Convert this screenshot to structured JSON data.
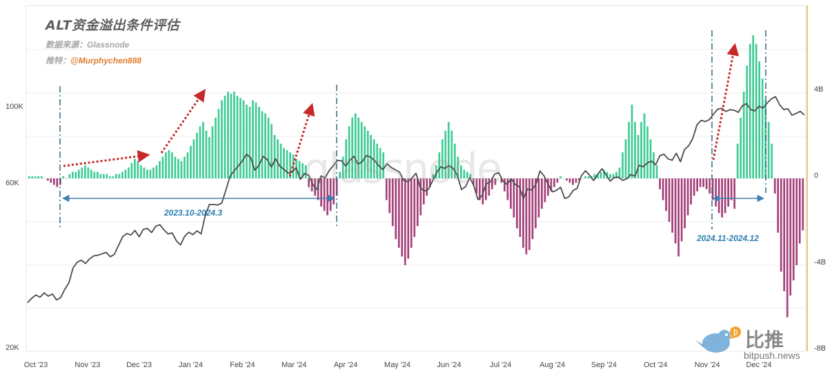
{
  "header": {
    "title": "ALT资金溢出条件评估",
    "source_label": "数据来源：",
    "source_value": "Glassnode",
    "author_label": "推特：",
    "author_handle": "@Murphychen888"
  },
  "watermark": "glassnode",
  "brand": {
    "name_cn": "比推",
    "url": "bitpush.news"
  },
  "colors": {
    "positive_bar": "#3ecb94",
    "negative_bar": "#a43f79",
    "price_line": "#4a4a4a",
    "arrow": "#c82828",
    "annotation": "#2a7eb0",
    "right_axis": "#e3b04b"
  },
  "annotations": [
    {
      "label": "2023.10-2024.3"
    },
    {
      "label": "2024.11-2024.12"
    }
  ],
  "chart_data": {
    "type": "bar+line",
    "title": "ALT资金溢出条件评估",
    "x_ticks": [
      "Oct '23",
      "Nov '23",
      "Dec '23",
      "Jan '24",
      "Feb '24",
      "Mar '24",
      "Apr '24",
      "May '24",
      "Jun '24",
      "Jul '24",
      "Aug '24",
      "Sep '24",
      "Oct '24",
      "Nov '24",
      "Dec '24"
    ],
    "left_axis": {
      "ticks": [
        "20K",
        "60K",
        "100K"
      ],
      "scale": "log",
      "range": [
        20000,
        140000
      ]
    },
    "right_axis": {
      "ticks": [
        "4B",
        "0",
        "-4B",
        "-8B"
      ],
      "range": [
        -8,
        8
      ],
      "unit": "B"
    },
    "series": [
      {
        "name": "",
        "kind": "bar",
        "axis": "right",
        "values": [
          0.1,
          0.1,
          0.1,
          0.1,
          0.1,
          0.0,
          -0.1,
          -0.2,
          -0.3,
          -0.4,
          -0.3,
          0.1,
          0.0,
          0.2,
          0.3,
          0.3,
          0.4,
          0.5,
          0.6,
          0.5,
          0.4,
          0.3,
          0.3,
          0.2,
          0.2,
          0.2,
          0.1,
          0.1,
          0.2,
          0.2,
          0.3,
          0.4,
          0.5,
          0.7,
          0.9,
          0.8,
          0.6,
          0.5,
          0.4,
          0.4,
          0.5,
          0.6,
          0.8,
          1.0,
          1.2,
          1.3,
          1.2,
          1.0,
          0.9,
          0.8,
          1.0,
          1.2,
          1.5,
          1.8,
          2.1,
          2.4,
          2.6,
          2.2,
          1.9,
          2.4,
          2.8,
          3.2,
          3.6,
          3.8,
          4.0,
          3.9,
          4.0,
          3.8,
          3.7,
          3.6,
          3.4,
          3.3,
          3.6,
          3.5,
          3.3,
          3.1,
          3.0,
          2.8,
          2.5,
          2.0,
          1.8,
          1.6,
          1.4,
          1.3,
          1.2,
          1.1,
          0.9,
          0.8,
          0.7,
          0.6,
          -0.4,
          -0.6,
          -0.8,
          -1.0,
          -1.3,
          -1.5,
          -1.7,
          -1.5,
          -1.2,
          -0.8,
          0.3,
          1.0,
          1.8,
          2.4,
          2.8,
          3.0,
          2.8,
          2.6,
          2.4,
          2.2,
          2.0,
          1.8,
          1.6,
          1.4,
          1.2,
          -1.0,
          -1.6,
          -2.2,
          -2.8,
          -3.2,
          -3.6,
          -4.0,
          -3.7,
          -3.2,
          -2.7,
          -2.2,
          -1.7,
          -1.2,
          -0.8,
          -0.4,
          0.2,
          0.6,
          1.2,
          1.8,
          2.2,
          2.6,
          2.2,
          1.6,
          1.0,
          0.6,
          0.4,
          0.3,
          0.2,
          -0.3,
          -0.7,
          -1.0,
          -1.2,
          -1.0,
          -0.8,
          -0.5,
          -0.3,
          0.0,
          -0.2,
          -0.6,
          -1.0,
          -1.4,
          -1.8,
          -2.3,
          -2.7,
          -3.2,
          -3.5,
          -3.3,
          -2.8,
          -2.3,
          -1.8,
          -1.4,
          -1.1,
          -0.8,
          -0.6,
          -0.4,
          -0.2,
          0.1,
          0.0,
          -0.1,
          -0.2,
          -0.3,
          -0.2,
          -0.1,
          0.0,
          0.1,
          0.1,
          0.1,
          0.2,
          0.2,
          0.3,
          0.4,
          0.3,
          0.2,
          0.2,
          0.3,
          0.5,
          1.2,
          1.8,
          2.6,
          3.4,
          2.6,
          2.0,
          2.6,
          3.0,
          2.4,
          1.8,
          1.2,
          0.6,
          -0.5,
          -1.0,
          -1.5,
          -2.0,
          -2.5,
          -3.0,
          -3.6,
          -2.9,
          -2.3,
          -1.7,
          -1.2,
          -0.8,
          -0.6,
          -0.4,
          -0.4,
          -0.5,
          -0.7,
          -1.0,
          -1.3,
          -1.6,
          -1.8,
          -1.6,
          -1.3,
          -1.0,
          -1.4,
          1.6,
          2.8,
          4.0,
          5.2,
          6.2,
          6.6,
          6.2,
          5.4,
          4.6,
          3.6,
          2.6,
          1.6,
          -0.7,
          -2.5,
          -4.3,
          -5.2,
          -6.4,
          -5.4,
          -4.7,
          -4.0,
          -3.0,
          -2.4
        ]
      },
      {
        "name": "",
        "kind": "line",
        "axis": "left",
        "values": [
          27000,
          27800,
          28400,
          28000,
          28800,
          28200,
          28600,
          27500,
          27900,
          29500,
          30800,
          34000,
          35300,
          35800,
          35000,
          36100,
          36800,
          37000,
          37300,
          37700,
          36600,
          37200,
          39500,
          41800,
          42700,
          42300,
          43600,
          41800,
          43900,
          44200,
          43000,
          44800,
          45300,
          43800,
          42600,
          42900,
          40700,
          39600,
          41900,
          43100,
          42400,
          43500,
          42600,
          48200,
          51800,
          51800,
          51600,
          52300,
          57000,
          62500,
          64800,
          66900,
          69200,
          72300,
          70600,
          65000,
          67200,
          71300,
          69800,
          66400,
          70200,
          66800,
          65500,
          63800,
          64200,
          66100,
          61200,
          63600,
          62900,
          59200,
          57200,
          62600,
          61800,
          64900,
          67100,
          69400,
          69200,
          66800,
          69500,
          71300,
          67600,
          68900,
          71700,
          70900,
          69300,
          66900,
          65300,
          67900,
          66200,
          65200,
          64300,
          60900,
          60200,
          61700,
          63700,
          58100,
          56600,
          57300,
          60500,
          64000,
          66500,
          65800,
          67100,
          65800,
          62800,
          57200,
          58300,
          61900,
          58600,
          53500,
          55000,
          59400,
          60100,
          63300,
          64000,
          60600,
          59200,
          61400,
          59200,
          58300,
          53900,
          57400,
          57000,
          59100,
          64700,
          62600,
          59100,
          56300,
          56900,
          58100,
          53900,
          54500,
          56800,
          57700,
          62600,
          64800,
          62900,
          60700,
          63300,
          65700,
          63100,
          60500,
          62000,
          62100,
          60800,
          61400,
          63200,
          62500,
          67200,
          66500,
          68300,
          69100,
          67400,
          71600,
          72300,
          70100,
          69500,
          72800,
          68800,
          74600,
          76500,
          80400,
          87900,
          90500,
          89800,
          91000,
          94300,
          97500,
          98100,
          96000,
          97200,
          96800,
          95500,
          99800,
          101200,
          97300,
          96400,
          99400,
          98300,
          101600,
          104400,
          106000,
          100400,
          97300,
          97800,
          93700,
          94800,
          96100,
          93800
        ]
      }
    ],
    "grid": true,
    "legend": "none"
  }
}
